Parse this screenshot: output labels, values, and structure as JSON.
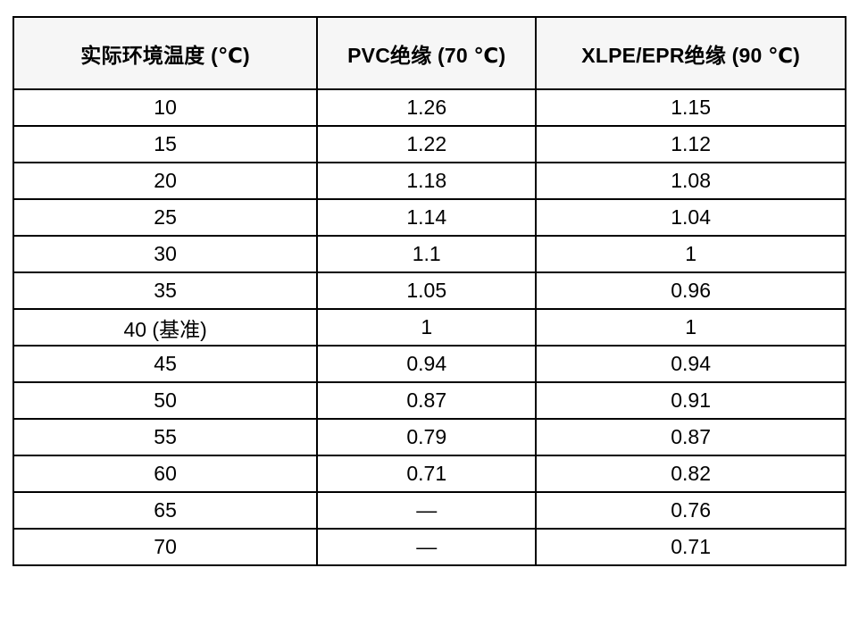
{
  "table": {
    "title_semantic": "ambient-temperature-correction-factors",
    "columns": [
      "实际环境温度 (℃)",
      "PVC绝缘 (70 ℃)",
      "XLPE/EPR绝缘 (90 ℃)"
    ],
    "rows": [
      [
        "10",
        "1.26",
        "1.15"
      ],
      [
        "15",
        "1.22",
        "1.12"
      ],
      [
        "20",
        "1.18",
        "1.08"
      ],
      [
        "25",
        "1.14",
        "1.04"
      ],
      [
        "30",
        "1.1",
        "1"
      ],
      [
        "35",
        "1.05",
        "0.96"
      ],
      [
        "40 (基准)",
        "1",
        "1"
      ],
      [
        "45",
        "0.94",
        "0.94"
      ],
      [
        "50",
        "0.87",
        "0.91"
      ],
      [
        "55",
        "0.79",
        "0.87"
      ],
      [
        "60",
        "0.71",
        "0.82"
      ],
      [
        "65",
        "—",
        "0.76"
      ],
      [
        "70",
        "—",
        "0.71"
      ]
    ],
    "colors": {
      "header_bg": "#f6f6f6",
      "body_bg": "#ffffff",
      "border": "#000000",
      "text": "#000000"
    }
  }
}
